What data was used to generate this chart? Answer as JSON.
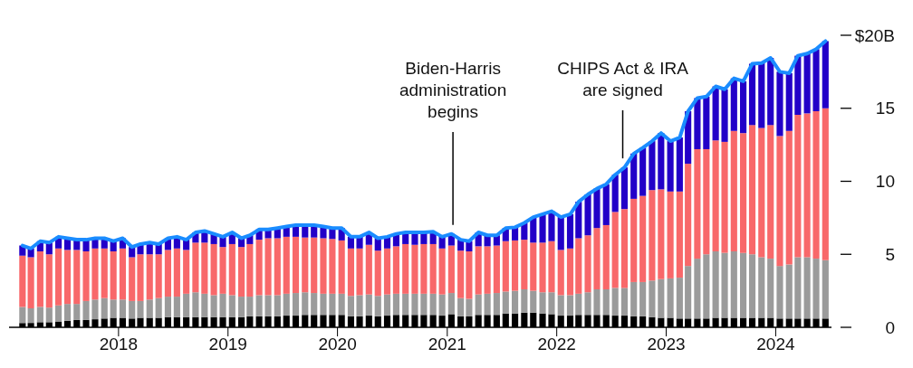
{
  "chart_data": {
    "type": "bar",
    "stacked": true,
    "x": [
      "2017-02-15",
      "2017-03-15",
      "2017-04-15",
      "2017-05-15",
      "2017-06-15",
      "2017-07-15",
      "2017-08-15",
      "2017-09-15",
      "2017-10-15",
      "2017-11-15",
      "2017-12-15",
      "2018-01-15",
      "2018-02-15",
      "2018-03-15",
      "2018-04-15",
      "2018-05-15",
      "2018-06-15",
      "2018-07-15",
      "2018-08-15",
      "2018-09-15",
      "2018-10-15",
      "2018-11-15",
      "2018-12-15",
      "2019-01-15",
      "2019-02-15",
      "2019-03-15",
      "2019-04-15",
      "2019-05-15",
      "2019-06-15",
      "2019-07-15",
      "2019-08-15",
      "2019-09-15",
      "2019-10-15",
      "2019-11-15",
      "2019-12-15",
      "2020-01-15",
      "2020-02-15",
      "2020-03-15",
      "2020-04-15",
      "2020-05-15",
      "2020-06-15",
      "2020-07-15",
      "2020-08-15",
      "2020-09-15",
      "2020-10-15",
      "2020-11-15",
      "2020-12-15",
      "2021-01-15",
      "2021-02-15",
      "2021-03-15",
      "2021-04-15",
      "2021-05-15",
      "2021-06-15",
      "2021-07-15",
      "2021-08-15",
      "2021-09-15",
      "2021-10-15",
      "2021-11-15",
      "2021-12-15",
      "2022-01-15",
      "2022-02-15",
      "2022-03-15",
      "2022-04-15",
      "2022-05-15",
      "2022-06-15",
      "2022-07-15",
      "2022-08-15",
      "2022-09-15",
      "2022-10-15",
      "2022-11-15",
      "2022-12-15",
      "2023-01-15",
      "2023-02-15",
      "2023-03-15",
      "2023-04-15",
      "2023-05-15",
      "2023-06-15",
      "2023-07-15",
      "2023-08-15",
      "2023-09-15",
      "2023-10-15",
      "2023-11-15",
      "2023-12-15",
      "2024-01-15",
      "2024-02-15",
      "2024-03-15",
      "2024-04-15",
      "2024-05-15",
      "2024-06-15"
    ],
    "xlim": [
      "2017-01-01",
      "2024-07-05"
    ],
    "xticks": [
      "2018",
      "2019",
      "2020",
      "2021",
      "2022",
      "2023",
      "2024"
    ],
    "ylim": [
      0,
      20
    ],
    "yticks": [
      0,
      5,
      10,
      {
        "value": 20,
        "label": "$20B"
      },
      15
    ],
    "series": [
      {
        "color": "#000000",
        "values": [
          0.3,
          0.3,
          0.35,
          0.35,
          0.4,
          0.45,
          0.5,
          0.5,
          0.55,
          0.6,
          0.65,
          0.65,
          0.6,
          0.65,
          0.65,
          0.65,
          0.7,
          0.7,
          0.7,
          0.7,
          0.7,
          0.7,
          0.7,
          0.7,
          0.7,
          0.75,
          0.75,
          0.75,
          0.75,
          0.8,
          0.8,
          0.85,
          0.85,
          0.85,
          0.85,
          0.85,
          0.75,
          0.75,
          0.8,
          0.75,
          0.8,
          0.85,
          0.85,
          0.85,
          0.85,
          0.85,
          0.8,
          0.9,
          0.75,
          0.75,
          0.85,
          0.85,
          0.85,
          0.95,
          0.95,
          1.0,
          1.0,
          0.95,
          0.9,
          0.8,
          0.8,
          0.85,
          0.85,
          0.85,
          0.85,
          0.8,
          0.8,
          0.75,
          0.75,
          0.7,
          0.65,
          0.65,
          0.6,
          0.6,
          0.6,
          0.6,
          0.65,
          0.65,
          0.65,
          0.65,
          0.65,
          0.65,
          0.65,
          0.6,
          0.6,
          0.6,
          0.6,
          0.6,
          0.6
        ]
      },
      {
        "color": "#9b9b9b",
        "values": [
          1.1,
          1.0,
          1.05,
          1.0,
          1.1,
          1.15,
          1.1,
          1.3,
          1.35,
          1.4,
          1.25,
          1.25,
          1.2,
          1.15,
          1.25,
          1.35,
          1.4,
          1.4,
          1.6,
          1.7,
          1.6,
          1.5,
          1.6,
          1.5,
          1.4,
          1.35,
          1.45,
          1.45,
          1.45,
          1.5,
          1.55,
          1.55,
          1.5,
          1.45,
          1.45,
          1.45,
          1.4,
          1.45,
          1.45,
          1.4,
          1.45,
          1.45,
          1.45,
          1.45,
          1.45,
          1.45,
          1.45,
          1.45,
          1.25,
          1.2,
          1.4,
          1.45,
          1.5,
          1.5,
          1.55,
          1.6,
          1.5,
          1.45,
          1.5,
          1.4,
          1.4,
          1.45,
          1.55,
          1.75,
          1.75,
          1.9,
          1.9,
          2.35,
          2.35,
          2.5,
          2.65,
          2.7,
          2.8,
          3.6,
          4.1,
          4.4,
          4.55,
          4.45,
          4.55,
          4.45,
          4.35,
          4.15,
          4.05,
          3.6,
          3.7,
          4.2,
          4.2,
          4.1,
          4.0
        ]
      },
      {
        "color": "#f8686a",
        "values": [
          3.5,
          3.5,
          3.8,
          3.65,
          3.9,
          3.7,
          3.7,
          3.4,
          3.5,
          3.4,
          3.3,
          3.5,
          3.0,
          3.2,
          3.1,
          3.0,
          3.2,
          3.3,
          3.0,
          3.4,
          3.5,
          3.5,
          3.2,
          3.5,
          3.4,
          3.6,
          3.8,
          3.9,
          3.9,
          3.9,
          3.85,
          3.75,
          3.8,
          3.8,
          3.75,
          3.65,
          3.25,
          3.2,
          3.4,
          3.1,
          3.15,
          3.25,
          3.4,
          3.35,
          3.4,
          3.4,
          3.15,
          3.25,
          3.25,
          3.25,
          3.3,
          3.25,
          3.25,
          3.45,
          3.45,
          3.4,
          3.3,
          3.4,
          3.5,
          3.1,
          3.2,
          3.8,
          3.9,
          4.2,
          4.4,
          5.2,
          5.4,
          5.7,
          5.9,
          6.2,
          6.15,
          5.95,
          5.9,
          7.0,
          7.5,
          7.2,
          7.6,
          7.6,
          8.25,
          8.2,
          8.85,
          8.85,
          9.15,
          8.9,
          9.15,
          9.75,
          9.85,
          10.1,
          10.4
        ]
      },
      {
        "color": "#2200c8",
        "values": [
          0.7,
          0.6,
          0.7,
          0.8,
          0.8,
          0.8,
          0.7,
          0.8,
          0.7,
          0.7,
          0.7,
          0.7,
          0.7,
          0.7,
          0.8,
          0.7,
          0.8,
          0.8,
          0.7,
          0.7,
          0.8,
          0.7,
          0.7,
          0.8,
          0.6,
          0.6,
          0.7,
          0.6,
          0.7,
          0.7,
          0.8,
          0.85,
          0.85,
          0.8,
          0.75,
          0.85,
          0.8,
          0.8,
          0.85,
          0.85,
          0.8,
          0.85,
          0.8,
          0.85,
          0.8,
          0.85,
          0.8,
          0.8,
          0.75,
          0.7,
          0.95,
          0.75,
          0.7,
          0.9,
          0.9,
          1.15,
          1.75,
          1.95,
          2.05,
          2.25,
          2.35,
          2.5,
          2.8,
          2.7,
          2.8,
          2.55,
          2.85,
          3.1,
          3.3,
          3.35,
          3.85,
          3.45,
          3.7,
          3.6,
          3.5,
          3.6,
          3.7,
          3.6,
          3.6,
          3.55,
          4.2,
          4.45,
          4.6,
          4.4,
          3.95,
          4.05,
          4.1,
          4.25,
          4.6
        ]
      },
      {
        "type": "line",
        "color": "#1a8cff",
        "values": [
          5.6,
          5.4,
          5.9,
          5.8,
          6.2,
          6.1,
          6.0,
          6.0,
          6.1,
          6.1,
          5.9,
          6.1,
          5.5,
          5.7,
          5.8,
          5.7,
          6.1,
          6.2,
          6.0,
          6.5,
          6.6,
          6.4,
          6.2,
          6.5,
          6.1,
          6.3,
          6.7,
          6.7,
          6.8,
          6.9,
          7.0,
          7.0,
          7.0,
          6.9,
          6.8,
          6.8,
          6.2,
          6.2,
          6.5,
          6.1,
          6.2,
          6.4,
          6.5,
          6.5,
          6.5,
          6.55,
          6.2,
          6.4,
          6.0,
          5.9,
          6.5,
          6.3,
          6.3,
          6.8,
          6.85,
          7.15,
          7.55,
          7.75,
          7.95,
          7.55,
          7.75,
          8.6,
          9.1,
          9.5,
          9.8,
          10.45,
          10.95,
          11.9,
          12.3,
          12.75,
          13.3,
          12.75,
          13.0,
          14.8,
          15.7,
          15.8,
          16.5,
          16.3,
          17.05,
          16.85,
          18.05,
          18.1,
          18.45,
          17.5,
          17.4,
          18.6,
          18.75,
          19.05,
          19.6
        ]
      }
    ],
    "ref_lines": [
      {
        "axis": "x",
        "value": "2021-01-20",
        "label": "Biden-Harris administration begins"
      },
      {
        "axis": "x",
        "value": "2022-08-09",
        "label": "CHIPS Act & IRA are signed"
      }
    ]
  }
}
